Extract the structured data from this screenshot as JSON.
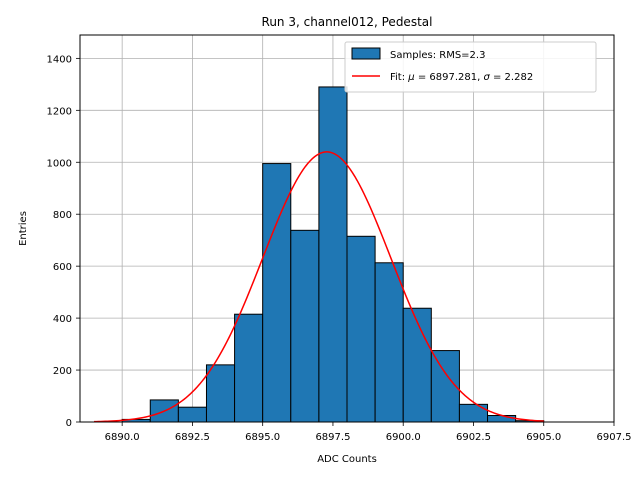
{
  "chart_data": {
    "type": "bar",
    "title": "Run 3, channel012, Pedestal",
    "xlabel": "ADC Counts",
    "ylabel": "Entries",
    "xlim": [
      6888.5,
      6907.5
    ],
    "ylim": [
      0,
      1490
    ],
    "xticks": [
      6890.0,
      6892.5,
      6895.0,
      6897.5,
      6900.0,
      6902.5,
      6905.0,
      6907.5
    ],
    "xtick_labels": [
      "6890.0",
      "6892.5",
      "6895.0",
      "6897.5",
      "6900.0",
      "6902.5",
      "6905.0",
      "6907.5"
    ],
    "yticks": [
      0,
      200,
      400,
      600,
      800,
      1000,
      1200,
      1400
    ],
    "ytick_labels": [
      "0",
      "200",
      "400",
      "600",
      "800",
      "1000",
      "1200",
      "1400"
    ],
    "grid": true,
    "legend_position": "top-right",
    "histogram": {
      "name": "Samples: RMS=2.3",
      "color": "#1f77b4",
      "edge_color": "#000000",
      "bin_edges": [
        6889.0,
        6890.0,
        6891.0,
        6892.0,
        6893.0,
        6894.0,
        6895.0,
        6896.0,
        6897.0,
        6898.0,
        6899.0,
        6900.0,
        6901.0,
        6902.0,
        6903.0,
        6904.0,
        6905.0
      ],
      "counts": [
        0,
        10,
        85,
        57,
        220,
        415,
        995,
        738,
        1290,
        715,
        613,
        438,
        275,
        68,
        25,
        5
      ]
    },
    "fit": {
      "name_prefix": "Fit: ",
      "name_mu": "μ",
      "name_mid": " = 6897.281, ",
      "name_sigma": "σ",
      "name_suffix": " = 2.282",
      "type": "gaussian",
      "mu": 6897.281,
      "sigma": 2.282,
      "amplitude": 1040,
      "x_range": [
        6889.0,
        6905.0
      ],
      "color": "#ff0000"
    }
  }
}
